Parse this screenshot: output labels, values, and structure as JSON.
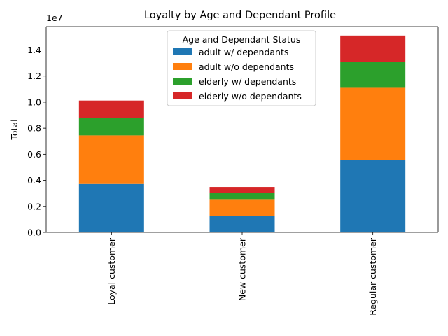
{
  "chart_data": {
    "type": "bar",
    "stacked": true,
    "title": "Loyalty by Age and Dependant Profile",
    "xlabel": "",
    "ylabel": "Total",
    "y_offset_label": "1e7",
    "ylim": [
      0,
      1.58
    ],
    "yticks": [
      "0.0",
      "0.2",
      "0.4",
      "0.6",
      "0.8",
      "1.0",
      "1.2",
      "1.4"
    ],
    "categories": [
      "Loyal customer",
      "New customer",
      "Regular customer"
    ],
    "legend": {
      "title": "Age and Dependant Status",
      "placement": "upper center"
    },
    "series": [
      {
        "name": "adult w/ dependants",
        "color": "#1f77b4",
        "values": [
          0.372,
          0.128,
          0.557
        ]
      },
      {
        "name": "adult w/o dependants",
        "color": "#ff7f0e",
        "values": [
          0.373,
          0.128,
          0.553
        ]
      },
      {
        "name": "elderly w/ dependants",
        "color": "#2ca02c",
        "values": [
          0.133,
          0.046,
          0.198
        ]
      },
      {
        "name": "elderly w/o dependants",
        "color": "#d62728",
        "values": [
          0.134,
          0.047,
          0.203
        ]
      }
    ]
  }
}
